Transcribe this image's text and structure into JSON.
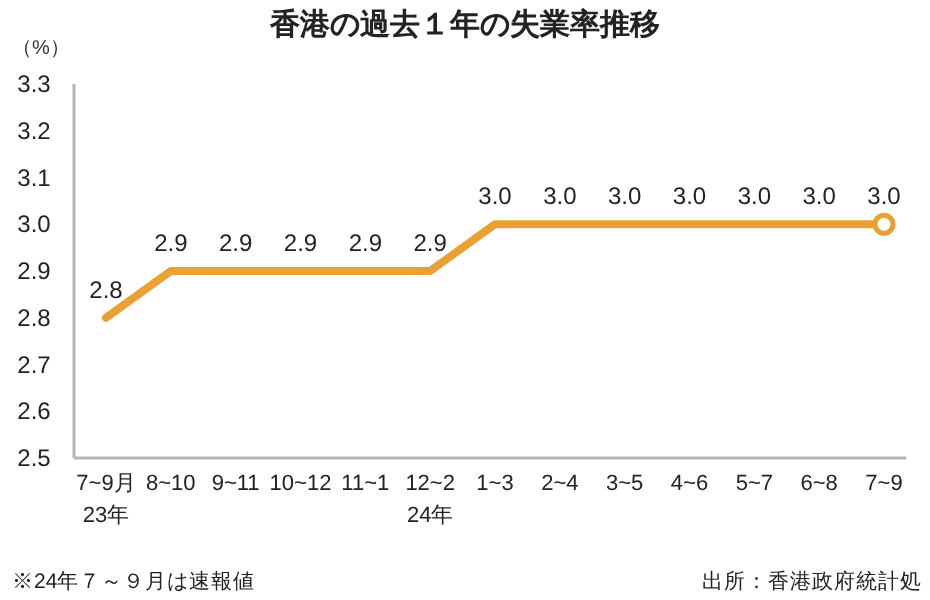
{
  "chart_data": {
    "type": "line",
    "title": "香港の過去１年の失業率推移",
    "ylabel": "（%）",
    "categories": [
      "7~9月\n23年",
      "8~10",
      "9~11",
      "10~12",
      "11~1",
      "12~2\n24年",
      "1~3",
      "2~4",
      "3~5",
      "4~6",
      "5~7",
      "6~8",
      "7~9"
    ],
    "series": [
      {
        "color": "#e9a133",
        "values": [
          2.8,
          2.9,
          2.9,
          2.9,
          2.9,
          2.9,
          3.0,
          3.0,
          3.0,
          3.0,
          3.0,
          3.0,
          3.0
        ],
        "value_labels": [
          "2.8",
          "2.9",
          "2.9",
          "2.9",
          "2.9",
          "2.9",
          "3.0",
          "3.0",
          "3.0",
          "3.0",
          "3.0",
          "3.0",
          "3.0"
        ]
      },
      {
        "type": "scatter",
        "color": "#e9a133",
        "marker": "circle",
        "x": [
          "7~9"
        ],
        "values": [
          3.0
        ]
      }
    ],
    "ylim": [
      2.5,
      3.3
    ],
    "yticks": [
      {
        "value": 2.5,
        "label": "2.5"
      },
      {
        "value": 2.6,
        "label": "2.6"
      },
      {
        "value": 2.7,
        "label": "2.7"
      },
      {
        "value": 2.8,
        "label": "2.8"
      },
      {
        "value": 2.9,
        "label": "2.9"
      },
      {
        "value": 3.0,
        "label": "3.0"
      },
      {
        "value": 3.1,
        "label": "3.1"
      },
      {
        "value": 3.2,
        "label": "3.2"
      },
      {
        "value": 3.3,
        "label": "3.3"
      }
    ],
    "grid": false,
    "annotations": [
      "※24年７～９月は速報値",
      "出所：香港政府統計処"
    ]
  }
}
